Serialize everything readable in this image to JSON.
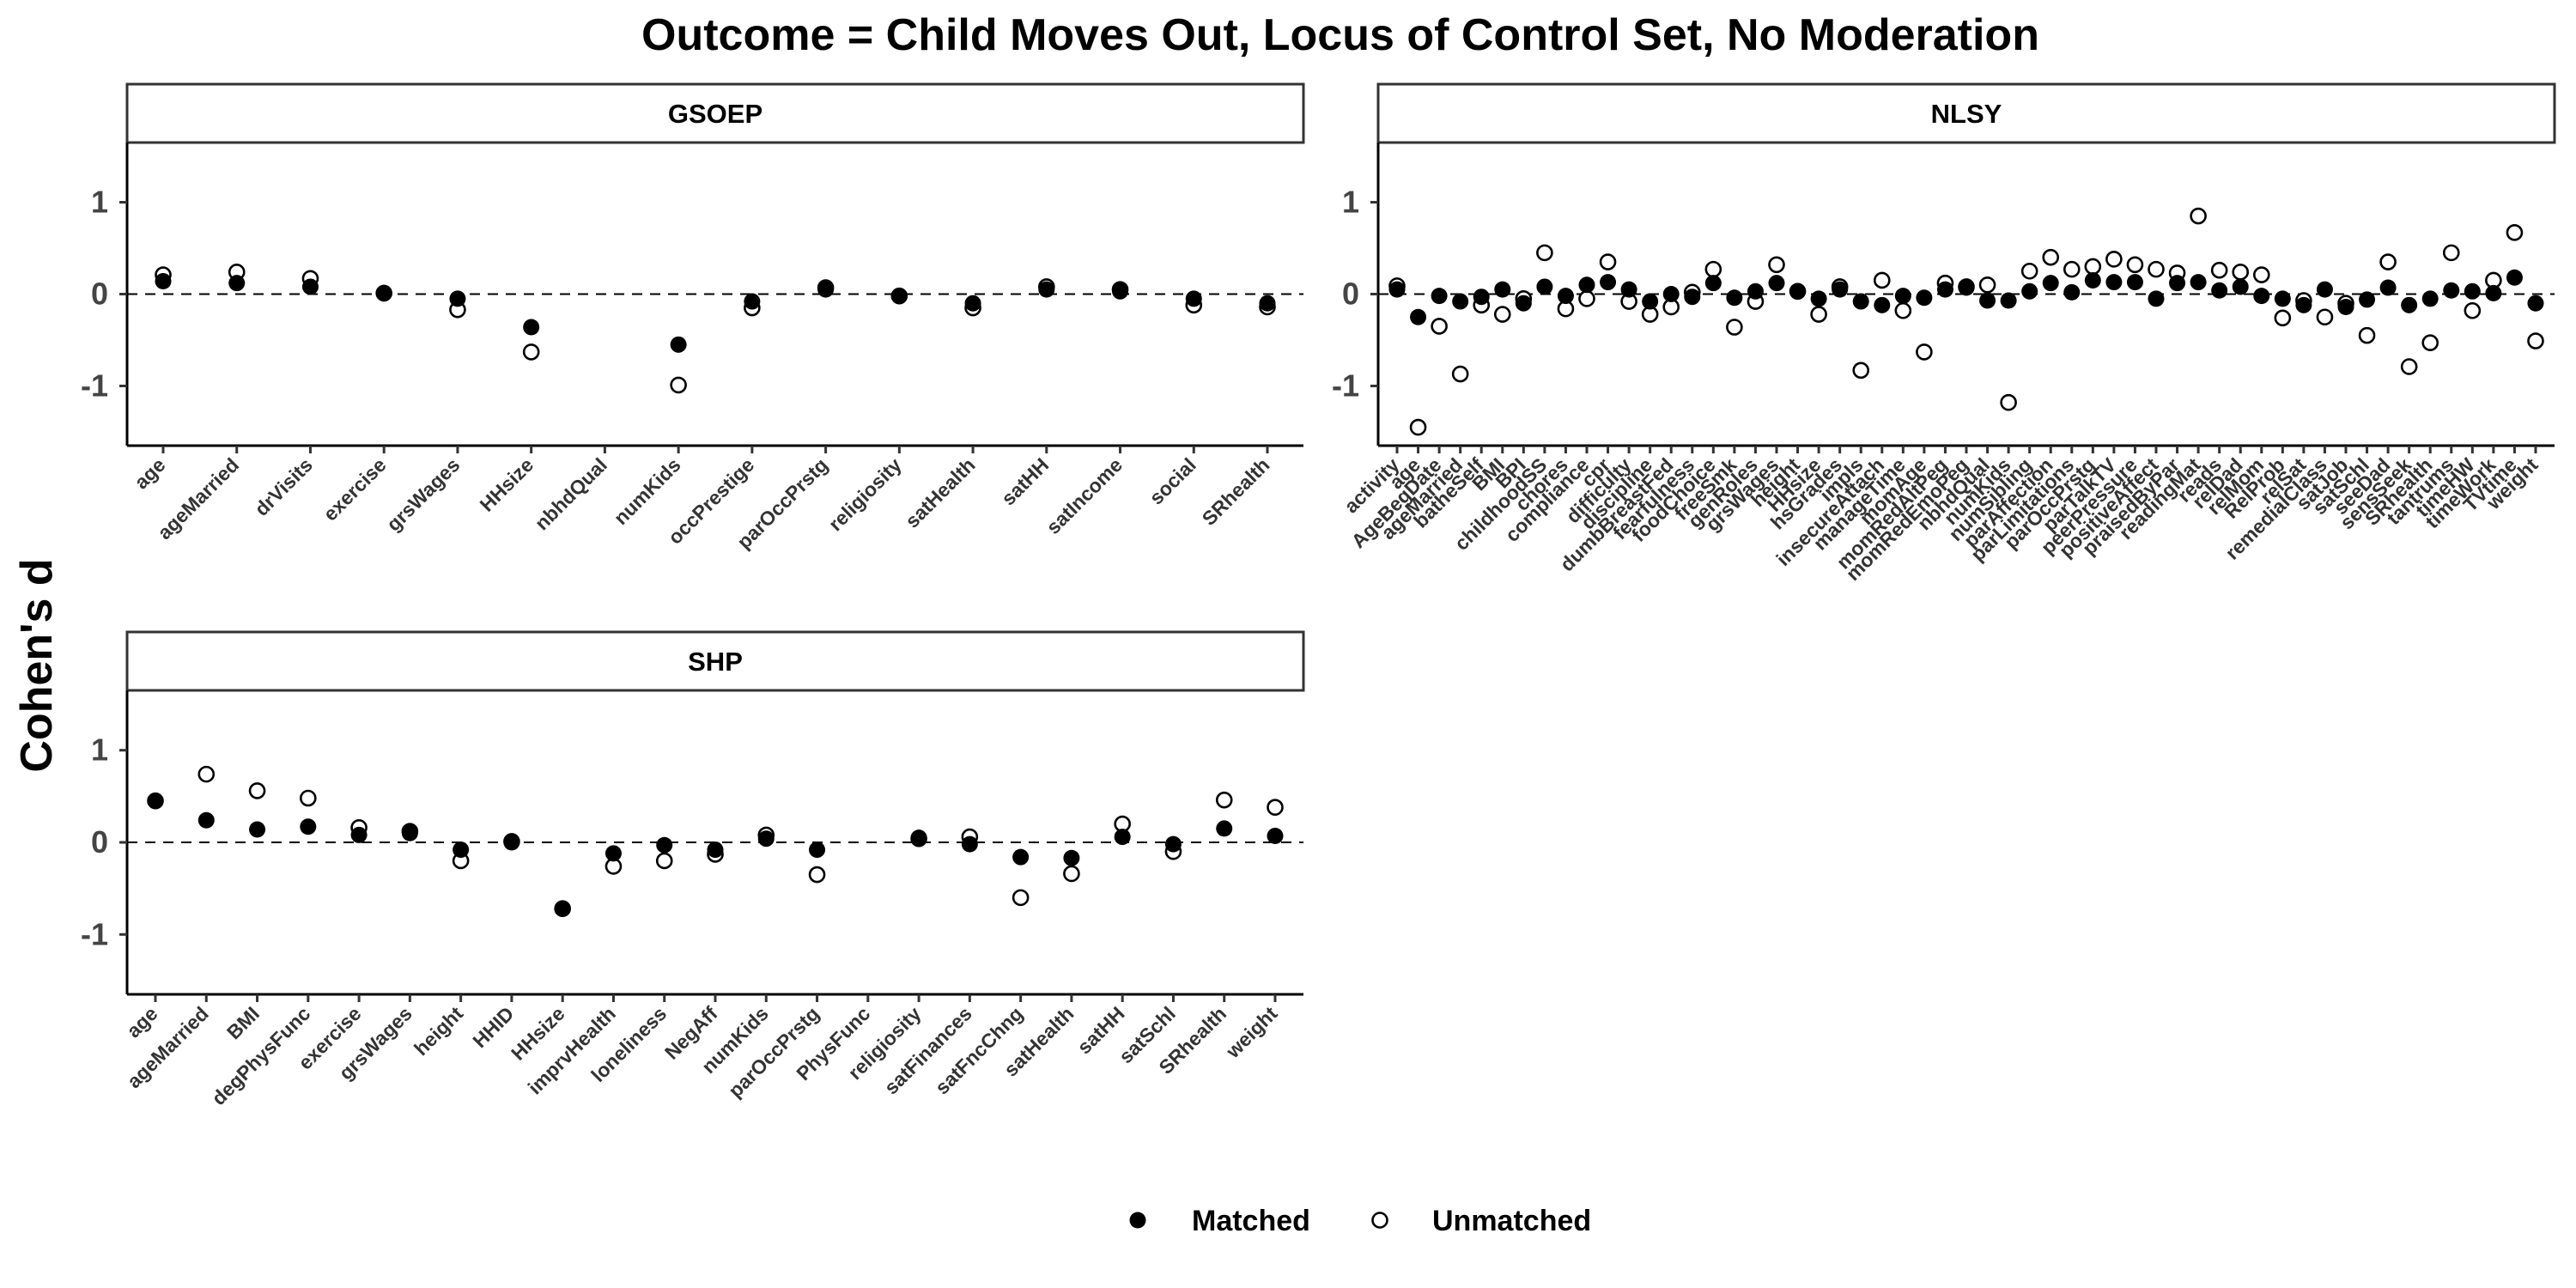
{
  "chart_data": {
    "title": "Outcome = Child Moves Out, Locus of Control Set, No Moderation",
    "ylabel": "Cohen's d",
    "type": "scatter",
    "ylim": [
      -1.65,
      1.65
    ],
    "yticks": [
      -1,
      0,
      1
    ],
    "reference_line": {
      "y": 0,
      "style": "dashed"
    },
    "grid": false,
    "legend": {
      "placement": "bottom",
      "entries": [
        {
          "name": "Matched",
          "marker": "filled-circle"
        },
        {
          "name": "Unmatched",
          "marker": "open-circle"
        }
      ]
    },
    "panels": [
      {
        "strip": "GSOEP",
        "categories": [
          "age",
          "ageMarried",
          "drVisits",
          "exercise",
          "grsWages",
          "HHsize",
          "nbhdQual",
          "numKids",
          "occPrestige",
          "parOccPrstg",
          "religiosity",
          "satHealth",
          "satHH",
          "satIncome",
          "social",
          "SRhealth"
        ],
        "series": [
          {
            "name": "Matched",
            "values": [
              0.14,
              0.12,
              0.08,
              0.01,
              -0.05,
              -0.36,
              null,
              -0.55,
              -0.08,
              0.05,
              -0.02,
              -0.1,
              0.05,
              0.03,
              -0.05,
              -0.1
            ]
          },
          {
            "name": "Unmatched",
            "values": [
              0.21,
              0.24,
              0.17,
              0.01,
              -0.17,
              -0.63,
              null,
              -0.99,
              -0.15,
              0.07,
              -0.02,
              -0.15,
              0.08,
              0.05,
              -0.12,
              -0.14
            ]
          }
        ]
      },
      {
        "strip": "NLSY",
        "categories": [
          "activity",
          "age",
          "AgeBegDate",
          "ageMarried",
          "batheSelf",
          "BMI",
          "BPI",
          "childhoodSS",
          "chores",
          "compliance",
          "cpr",
          "difficulty",
          "discipline",
          "dumbBreastFed",
          "fearfulness",
          "foodChoice",
          "freeSmk",
          "genRoles",
          "grsWages",
          "height",
          "HHsize",
          "hsGrades",
          "impls",
          "insecureAttach",
          "manageTime",
          "momAge",
          "momRedAltPeg",
          "momRedEmoPeg",
          "nbhdQual",
          "numKids",
          "numSibling",
          "parAffection",
          "parLimitations",
          "parOccPrstg",
          "parTalkTV",
          "peerPressure",
          "positiveAffect",
          "praisedByPar",
          "readingMat",
          "reads",
          "relDad",
          "relMom",
          "RelProb",
          "relSat",
          "remedialClass",
          "satJob",
          "satSchl",
          "seeDad",
          "sensSeek",
          "SRhealth",
          "tantrums",
          "timeHW",
          "timeWork",
          "TVtime",
          "weight"
        ],
        "series": [
          {
            "name": "Matched",
            "values": [
              0.05,
              -0.25,
              -0.02,
              -0.08,
              -0.03,
              0.05,
              -0.1,
              0.08,
              -0.02,
              0.1,
              0.13,
              0.05,
              -0.08,
              0.0,
              -0.03,
              0.12,
              -0.04,
              0.03,
              0.12,
              0.03,
              -0.05,
              0.05,
              -0.08,
              -0.12,
              -0.02,
              -0.04,
              0.05,
              0.07,
              -0.07,
              -0.07,
              0.03,
              0.12,
              0.02,
              0.15,
              0.13,
              0.13,
              -0.05,
              0.12,
              0.13,
              0.04,
              0.08,
              -0.02,
              -0.05,
              -0.12,
              0.05,
              -0.14,
              -0.06,
              0.07,
              -0.12,
              -0.05,
              0.04,
              0.03,
              0.01,
              0.18,
              -0.1
            ]
          },
          {
            "name": "Unmatched",
            "values": [
              0.09,
              -1.45,
              -0.35,
              -0.87,
              -0.12,
              -0.22,
              -0.05,
              0.45,
              -0.16,
              -0.05,
              0.35,
              -0.08,
              -0.22,
              -0.14,
              0.02,
              0.27,
              -0.36,
              -0.08,
              0.32,
              0.03,
              -0.22,
              0.08,
              -0.83,
              0.15,
              -0.18,
              -0.63,
              0.12,
              0.08,
              0.1,
              -1.18,
              0.25,
              0.4,
              0.27,
              0.3,
              0.38,
              0.32,
              0.27,
              0.23,
              0.85,
              0.26,
              0.24,
              0.21,
              -0.26,
              -0.07,
              -0.25,
              -0.1,
              -0.45,
              0.35,
              -0.79,
              -0.53,
              0.45,
              -0.18,
              0.15,
              0.67,
              -0.51
            ]
          }
        ]
      },
      {
        "strip": "SHP",
        "categories": [
          "age",
          "ageMarried",
          "BMI",
          "degPhysFunc",
          "exercise",
          "grsWages",
          "height",
          "HHID",
          "HHsize",
          "imprvHealth",
          "loneliness",
          "NegAff",
          "numKids",
          "parOccPrstg",
          "PhysFunc",
          "religiosity",
          "satFinances",
          "satFncChng",
          "satHealth",
          "satHH",
          "satSchl",
          "SRhealth",
          "weight"
        ],
        "series": [
          {
            "name": "Matched",
            "values": [
              0.45,
              0.24,
              0.14,
              0.17,
              0.08,
              0.1,
              -0.08,
              0.0,
              -0.72,
              -0.12,
              -0.03,
              -0.08,
              0.04,
              -0.08,
              null,
              0.05,
              -0.02,
              -0.16,
              -0.17,
              0.06,
              -0.02,
              0.15,
              0.07
            ]
          },
          {
            "name": "Unmatched",
            "values": [
              0.45,
              0.74,
              0.56,
              0.48,
              0.16,
              0.12,
              -0.2,
              0.01,
              -0.72,
              -0.26,
              -0.2,
              -0.13,
              0.08,
              -0.35,
              null,
              0.04,
              0.06,
              -0.6,
              -0.34,
              0.2,
              -0.1,
              0.46,
              0.38
            ]
          }
        ]
      }
    ]
  }
}
